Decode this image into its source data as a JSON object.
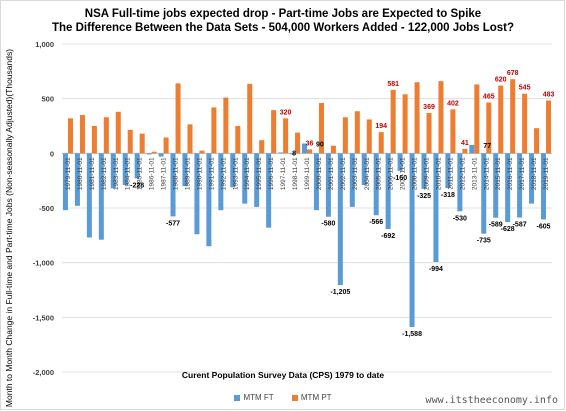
{
  "colors": {
    "ft": "#5b9bd5",
    "pt": "#ed7d31",
    "pt_label": "#c00000",
    "grid": "#d9d9d9",
    "tick": "#404040"
  },
  "chart_data": {
    "type": "bar",
    "title": "NSA  Full-time jobs expected drop - Part-time Jobs are Expected to Spike",
    "subtitle": "The Difference Between the Data Sets - 504,000 Workers Added - 122,000 Jobs Lost?",
    "xlabel": "Curent Population Survey Data (CPS) 1979 to date",
    "ylabel": "Month to Month Change in Full-time and Part-time Jobs (Non-seasonally Adjusted)(Thousands)",
    "ylim": [
      -2000,
      1000
    ],
    "yticks": [
      1000,
      500,
      0,
      -500,
      -1000,
      -1500,
      -2000
    ],
    "ytick_labels": [
      "1,000",
      "500",
      "0",
      "-500",
      "-1,000",
      "-1,500",
      "-2,000"
    ],
    "grid": true,
    "legend_position": "bottom",
    "categories": [
      "1979-11-01",
      "1980-11-01",
      "1981-11-01",
      "1982-11-01",
      "1983-11-01",
      "1984-11-01",
      "1985-11-01",
      "1986-11-01",
      "1987-11-01",
      "1988-11-01",
      "1989-11-01",
      "1990-11-01",
      "1991-11-01",
      "1992-11-01",
      "1993-11-01",
      "1994-11-01",
      "1995-11-01",
      "1996-11-01",
      "1997-11-01",
      "1998-11-01",
      "1999-11-01",
      "2000-11-01",
      "2001-11-01",
      "2002-11-01",
      "2003-11-01",
      "2004-11-01",
      "2005-11-01",
      "2006-11-01",
      "2007-11-01",
      "2008-11-01",
      "2009-11-01",
      "2010-11-01",
      "2011-11-01",
      "2012-11-01",
      "2013-11-01",
      "2014-11-01",
      "2015-11-01",
      "2016-11-01",
      "2017-11-01",
      "2018-11-01",
      "2019-11-01"
    ],
    "tick_labels": [
      "1979-11-01",
      "1980-11-01",
      "1981-11-01",
      "1982-11-01",
      "1983-11-01",
      "1984-11-01",
      "1985-11-01",
      "1986-11-01",
      "1987-11-01",
      "1988-11-01",
      "1989-11-01",
      "1990-11-01",
      "1991-11-01",
      "1992-11-01",
      "1993-11-01",
      "1994-11-01",
      "1995-11-01",
      "1996-11-01",
      "1997-11-01",
      "1998-11-01",
      "1999-11-01",
      "2000-11-01",
      "2001-11-01",
      "2002-11-01",
      "2003-11-01",
      "2004-11-01",
      "2005-11-01",
      "2006-11-01",
      "2007-11-01",
      "2008-11-01",
      "2009-11-01",
      "2010-11-01",
      "2011-11-01",
      "2012-11-01",
      "2013-11-01",
      "2014-11-01",
      "2015-11-01",
      "2016-11-01",
      "2017-11-01",
      "2018-11-01",
      "2019-11-01"
    ],
    "series": [
      {
        "name": "MTM FT",
        "values": [
          -520,
          -480,
          -770,
          -790,
          -320,
          -290,
          -228,
          -10,
          -30,
          -577,
          -300,
          -740,
          -850,
          -520,
          -310,
          -460,
          -490,
          -680,
          8,
          -10,
          90,
          -520,
          -580,
          -1205,
          -490,
          -290,
          -566,
          -692,
          -160,
          -1588,
          -325,
          -994,
          -318,
          -530,
          77,
          -735,
          -589,
          -628,
          -587,
          -460,
          -605
        ]
      },
      {
        "name": "MTM PT",
        "values": [
          320,
          350,
          250,
          330,
          380,
          215,
          180,
          15,
          145,
          640,
          265,
          25,
          420,
          510,
          250,
          635,
          120,
          395,
          320,
          190,
          36,
          460,
          70,
          330,
          385,
          310,
          194,
          581,
          540,
          650,
          369,
          660,
          402,
          41,
          630,
          465,
          620,
          678,
          545,
          230,
          483
        ]
      }
    ],
    "data_labels": [
      {
        "series": "MTM FT",
        "index": 6,
        "text": "-228"
      },
      {
        "series": "MTM FT",
        "index": 9,
        "text": "-577"
      },
      {
        "series": "MTM FT",
        "index": 18,
        "text": "8"
      },
      {
        "series": "MTM FT",
        "index": 20,
        "text": "90"
      },
      {
        "series": "MTM FT",
        "index": 22,
        "text": "-580"
      },
      {
        "series": "MTM FT",
        "index": 23,
        "text": "-1,205"
      },
      {
        "series": "MTM FT",
        "index": 26,
        "text": "-566"
      },
      {
        "series": "MTM FT",
        "index": 27,
        "text": "-692"
      },
      {
        "series": "MTM FT",
        "index": 28,
        "text": "-160"
      },
      {
        "series": "MTM FT",
        "index": 29,
        "text": "-1,588"
      },
      {
        "series": "MTM FT",
        "index": 30,
        "text": "-325"
      },
      {
        "series": "MTM FT",
        "index": 31,
        "text": "-994"
      },
      {
        "series": "MTM FT",
        "index": 32,
        "text": "-318"
      },
      {
        "series": "MTM FT",
        "index": 33,
        "text": "-530"
      },
      {
        "series": "MTM FT",
        "index": 34,
        "text": "77"
      },
      {
        "series": "MTM FT",
        "index": 35,
        "text": "-735"
      },
      {
        "series": "MTM FT",
        "index": 36,
        "text": "-589"
      },
      {
        "series": "MTM FT",
        "index": 37,
        "text": "-628"
      },
      {
        "series": "MTM FT",
        "index": 38,
        "text": "-587"
      },
      {
        "series": "MTM FT",
        "index": 40,
        "text": "-605"
      },
      {
        "series": "MTM PT",
        "index": 18,
        "text": "320"
      },
      {
        "series": "MTM PT",
        "index": 20,
        "text": "36"
      },
      {
        "series": "MTM PT",
        "index": 26,
        "text": "194"
      },
      {
        "series": "MTM PT",
        "index": 27,
        "text": "581"
      },
      {
        "series": "MTM PT",
        "index": 30,
        "text": "369"
      },
      {
        "series": "MTM PT",
        "index": 32,
        "text": "402"
      },
      {
        "series": "MTM PT",
        "index": 33,
        "text": "41"
      },
      {
        "series": "MTM PT",
        "index": 35,
        "text": "465"
      },
      {
        "series": "MTM PT",
        "index": 36,
        "text": "620"
      },
      {
        "series": "MTM PT",
        "index": 37,
        "text": "678"
      },
      {
        "series": "MTM PT",
        "index": 38,
        "text": "545"
      },
      {
        "series": "MTM PT",
        "index": 40,
        "text": "483"
      }
    ]
  },
  "legend": {
    "ft_label": "MTM FT",
    "pt_label": "MTM PT"
  },
  "source": "www.itstheeconomy.info"
}
